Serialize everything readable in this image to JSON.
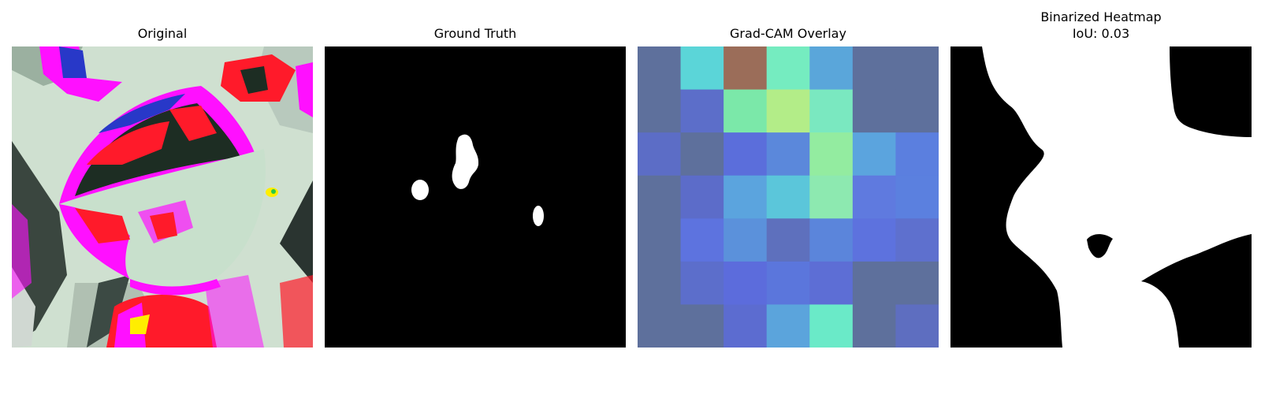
{
  "figure": {
    "panels": [
      {
        "title": "Original"
      },
      {
        "title": "Ground Truth"
      },
      {
        "title": "Grad-CAM Overlay"
      },
      {
        "title": "Binarized Heatmap",
        "subtitle": "IoU: 0.03"
      }
    ],
    "heatmap_grid": [
      [
        "#5e709c",
        "#5bd5d8",
        "#9b6d59",
        "#75ecc0",
        "#5aa6da",
        "#5e709c",
        "#5e709c"
      ],
      [
        "#5e709c",
        "#5c6ec9",
        "#7be8a9",
        "#b3ed88",
        "#7ae8c0",
        "#5e709c",
        "#5e709c"
      ],
      [
        "#5c6dc6",
        "#5e709c",
        "#5b6edb",
        "#5b88db",
        "#93eca0",
        "#5ba4de",
        "#5b7fdf"
      ],
      [
        "#5e709c",
        "#5c6cc9",
        "#5ba4de",
        "#5bc6da",
        "#8de9b0",
        "#5f7adf",
        "#5b80df"
      ],
      [
        "#5e709c",
        "#5d73df",
        "#5b91db",
        "#5e70bd",
        "#5b85db",
        "#5d72de",
        "#5e70ce"
      ],
      [
        "#5e709c",
        "#5c6ecb",
        "#5c6cdc",
        "#5b76dc",
        "#5d6ed5",
        "#5e709c",
        "#5e709c"
      ],
      [
        "#5e709c",
        "#5e709c",
        "#5c6cd0",
        "#5ba4dc",
        "#6aeac8",
        "#5e709c",
        "#5e6ec0"
      ]
    ],
    "colors": {
      "mask_background": "#000000",
      "mask_foreground": "#ffffff",
      "leaf_background": "#cfe0d0",
      "magenta": "#ff10ff",
      "red": "#ff1a2a",
      "dark_green": "#1d2d23",
      "blue": "#2838c8",
      "yellow": "#ffee00"
    }
  }
}
